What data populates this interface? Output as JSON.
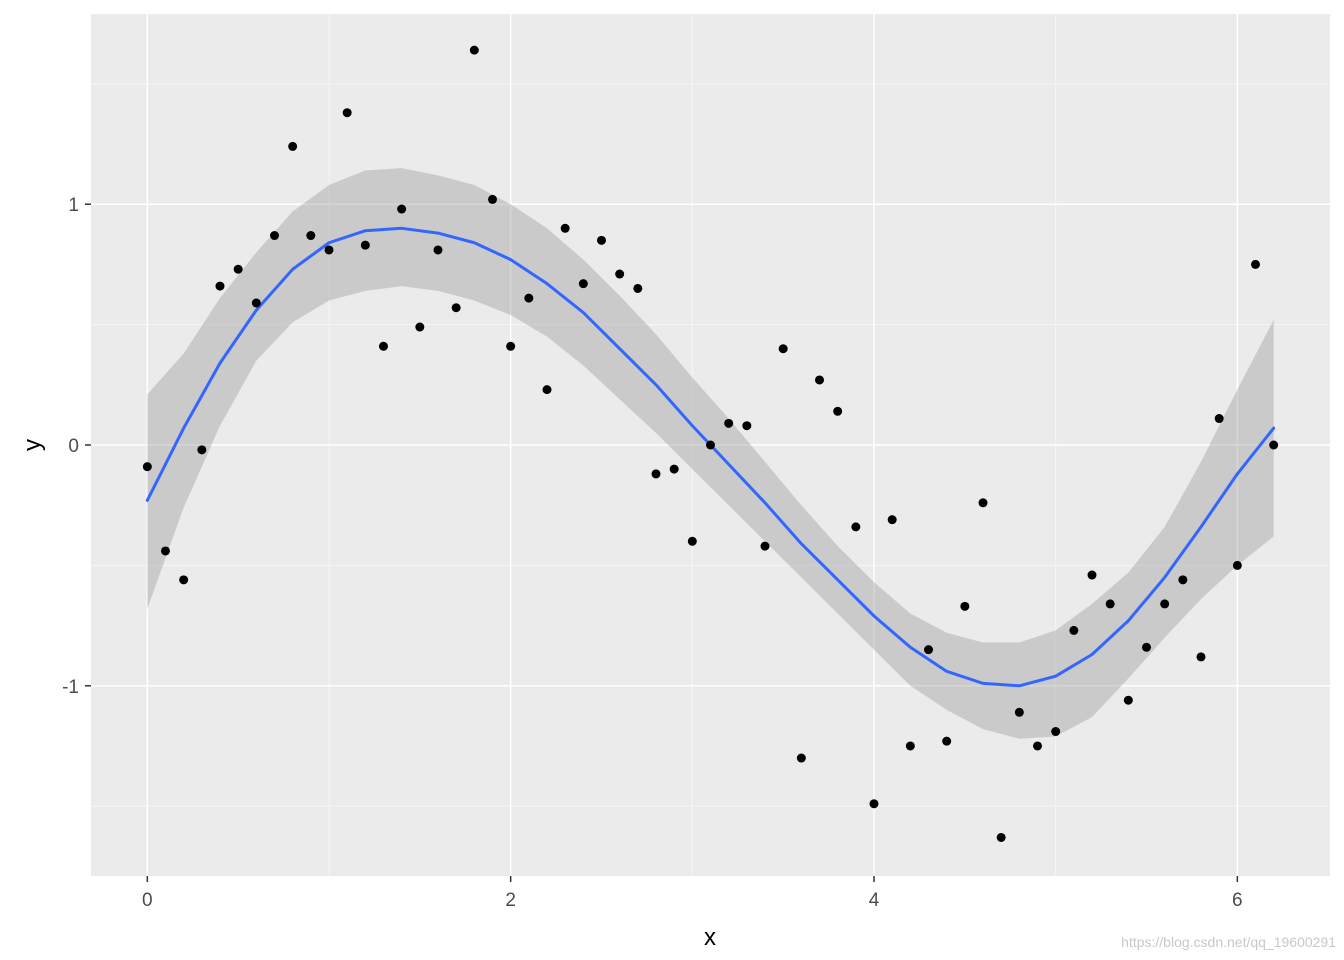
{
  "chart_data": {
    "type": "scatter",
    "title": "",
    "xlabel": "x",
    "ylabel": "y",
    "xlim": [
      -0.31,
      6.51
    ],
    "ylim": [
      -1.79,
      1.79
    ],
    "grid": true,
    "x_major_ticks": [
      0,
      2,
      4,
      6
    ],
    "x_minor_ticks": [
      1,
      3,
      5
    ],
    "y_major_ticks": [
      -1,
      0,
      1
    ],
    "y_minor_ticks": [
      -1.5,
      -0.5,
      0.5,
      1.5
    ],
    "x_tick_labels": [
      "0",
      "2",
      "4",
      "6"
    ],
    "y_tick_labels": [
      "-1",
      "0",
      "1"
    ],
    "colors": {
      "panel_background": "#ebebeb",
      "grid_major": "#ffffff",
      "grid_minor": "#f5f5f5",
      "points": "#000000",
      "smooth_line": "#3366ff",
      "ribbon": "#999999"
    },
    "points": {
      "x": [
        0.0,
        0.1,
        0.2,
        0.3,
        0.4,
        0.5,
        0.6,
        0.7,
        0.8,
        0.9,
        1.0,
        1.1,
        1.2,
        1.3,
        1.4,
        1.5,
        1.6,
        1.7,
        1.8,
        1.9,
        2.0,
        2.1,
        2.2,
        2.3,
        2.4,
        2.5,
        2.6,
        2.7,
        2.8,
        2.9,
        3.0,
        3.1,
        3.2,
        3.3,
        3.4,
        3.5,
        3.6,
        3.7,
        3.8,
        3.9,
        4.0,
        4.1,
        4.2,
        4.3,
        4.4,
        4.5,
        4.6,
        4.7,
        4.8,
        4.9,
        5.0,
        5.1,
        5.2,
        5.3,
        5.4,
        5.5,
        5.6,
        5.7,
        5.8,
        5.9,
        6.0,
        6.1,
        6.2
      ],
      "y": [
        -0.09,
        -0.44,
        -0.56,
        -0.02,
        0.66,
        0.73,
        0.59,
        0.87,
        1.24,
        0.87,
        0.81,
        1.38,
        0.83,
        0.41,
        0.98,
        0.49,
        0.81,
        0.57,
        1.64,
        1.02,
        0.41,
        0.61,
        0.23,
        0.9,
        0.67,
        0.85,
        0.71,
        0.65,
        -0.12,
        -0.1,
        -0.4,
        0.0,
        0.09,
        0.08,
        -0.42,
        0.4,
        -1.3,
        0.27,
        0.14,
        -0.34,
        -1.49,
        -0.31,
        -1.25,
        -0.85,
        -1.23,
        -0.67,
        -0.24,
        -1.63,
        -1.11,
        -1.25,
        -1.19,
        -0.77,
        -0.54,
        -0.66,
        -1.06,
        -0.84,
        -0.66,
        -0.56,
        -0.88,
        0.11,
        -0.5,
        0.75,
        0.0
      ]
    },
    "smooth": {
      "x": [
        0.0,
        0.2,
        0.4,
        0.6,
        0.8,
        1.0,
        1.2,
        1.4,
        1.6,
        1.8,
        2.0,
        2.2,
        2.4,
        2.6,
        2.8,
        3.0,
        3.2,
        3.4,
        3.6,
        3.8,
        4.0,
        4.2,
        4.4,
        4.6,
        4.8,
        5.0,
        5.2,
        5.4,
        5.6,
        5.8,
        6.0,
        6.2
      ],
      "y": [
        -0.23,
        0.07,
        0.34,
        0.56,
        0.73,
        0.84,
        0.89,
        0.9,
        0.88,
        0.84,
        0.77,
        0.67,
        0.55,
        0.4,
        0.25,
        0.08,
        -0.08,
        -0.24,
        -0.41,
        -0.56,
        -0.71,
        -0.84,
        -0.94,
        -0.99,
        -1.0,
        -0.96,
        -0.87,
        -0.73,
        -0.55,
        -0.34,
        -0.12,
        0.07
      ],
      "lower": [
        -0.68,
        -0.26,
        0.08,
        0.35,
        0.51,
        0.6,
        0.64,
        0.66,
        0.64,
        0.6,
        0.54,
        0.45,
        0.33,
        0.19,
        0.05,
        -0.1,
        -0.25,
        -0.4,
        -0.55,
        -0.7,
        -0.85,
        -1.0,
        -1.1,
        -1.18,
        -1.22,
        -1.21,
        -1.13,
        -0.97,
        -0.8,
        -0.64,
        -0.5,
        -0.38
      ],
      "upper": [
        0.21,
        0.38,
        0.61,
        0.8,
        0.97,
        1.08,
        1.14,
        1.15,
        1.12,
        1.08,
        1.0,
        0.9,
        0.77,
        0.62,
        0.46,
        0.28,
        0.11,
        -0.07,
        -0.25,
        -0.42,
        -0.57,
        -0.7,
        -0.78,
        -0.82,
        -0.82,
        -0.77,
        -0.66,
        -0.53,
        -0.34,
        -0.07,
        0.23,
        0.52
      ]
    }
  },
  "watermark": "https://blog.csdn.net/qq_19600291"
}
